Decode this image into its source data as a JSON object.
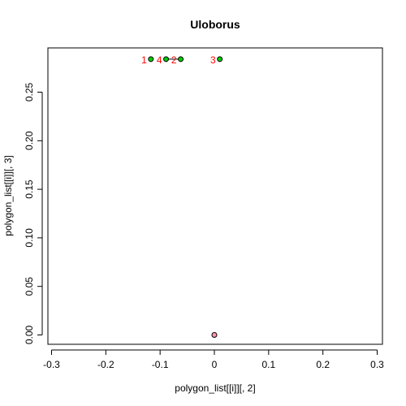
{
  "chart_data": {
    "type": "scatter",
    "title": "Uloborus",
    "xlabel": "polygon_list[[i]][, 2]",
    "ylabel": "polygon_list[[i]][, 3]",
    "xlim": [
      -0.3,
      0.3
    ],
    "ylim": [
      0.0,
      0.28
    ],
    "grid": false,
    "x_ticks": [
      -0.3,
      -0.2,
      -0.1,
      0.0,
      0.1,
      0.2,
      0.3
    ],
    "x_tick_labels": [
      "-0.3",
      "-0.2",
      "-0.1",
      "0",
      "0.1",
      "0.2",
      "0.3"
    ],
    "y_ticks": [
      0.0,
      0.05,
      0.1,
      0.15,
      0.2,
      0.25
    ],
    "y_tick_labels": [
      "0.00",
      "0.05",
      "0.10",
      "0.15",
      "0.20",
      "0.25"
    ],
    "label_color": "#ff0000",
    "line_color": "#000000",
    "points": [
      {
        "x": -0.117,
        "y": 0.284,
        "label": "1",
        "color": "#00cc00"
      },
      {
        "x": -0.062,
        "y": 0.284,
        "label": "2",
        "color": "#00cc00"
      },
      {
        "x": 0.01,
        "y": 0.284,
        "label": "3",
        "color": "#00cc00"
      },
      {
        "x": -0.089,
        "y": 0.284,
        "label": "4",
        "color": "#00cc00"
      },
      {
        "x": 0.0,
        "y": 0.0,
        "label": "",
        "color": "#ff99aa"
      }
    ],
    "segments": [
      {
        "from": 3,
        "to": 1
      }
    ]
  }
}
